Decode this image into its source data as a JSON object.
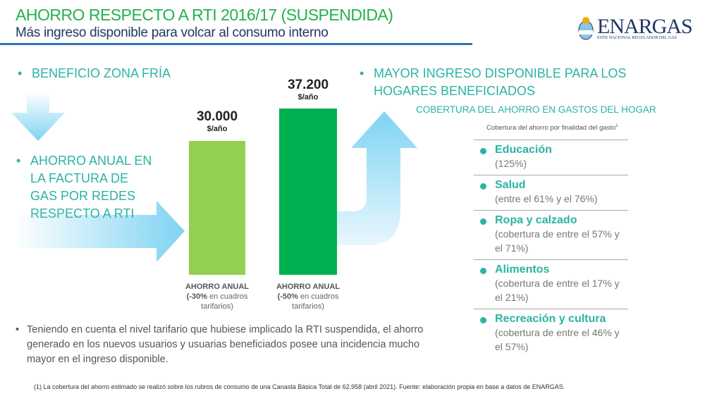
{
  "header": {
    "title": "AHORRO RESPECTO A RTI 2016/17 (SUSPENDIDA)",
    "subtitle": "Más ingreso disponible para volcar al consumo interno",
    "logo_name": "ENARGAS",
    "logo_sub": "ENTE NACIONAL REGULADOR DEL GAS"
  },
  "left": {
    "bullet1": "BENEFICIO ZONA FRÍA",
    "bullet2": "AHORRO ANUAL EN LA FACTURA DE GAS POR REDES RESPECTO A RTI"
  },
  "chart_data": {
    "type": "bar",
    "categories": [
      "AHORRO ANUAL (-30% en cuadros tarifarios)",
      "AHORRO ANUAL (-50% en cuadros tarifarios)"
    ],
    "values": [
      30000,
      37200
    ],
    "value_labels": [
      "30.000",
      "37.200"
    ],
    "unit": "$/año",
    "colors": [
      "#92d050",
      "#00b050"
    ],
    "bars": [
      {
        "label": "AHORRO ANUAL",
        "pct": "(-30%",
        "rest": " en cuadros tarifarios)"
      },
      {
        "label": "AHORRO ANUAL",
        "pct": "(-50%",
        "rest": " en cuadros tarifarios)"
      }
    ]
  },
  "right": {
    "heading": "MAYOR INGRESO DISPONIBLE PARA LOS HOGARES BENEFICIADOS",
    "subheading": "COBERTURA DEL AHORRO EN GASTOS DEL HOGAR",
    "caption": "Cobertura del ahorro por finalidad del gasto",
    "caption_sup": "1",
    "items": [
      {
        "title": "Educación",
        "desc": "(125%)"
      },
      {
        "title": "Salud",
        "desc": "(entre el 61% y el 76%)"
      },
      {
        "title": "Ropa y calzado",
        "desc": "(cobertura de entre el 57% y el 71%)"
      },
      {
        "title": "Alimentos",
        "desc": "(cobertura de entre el 17% y el 21%)"
      },
      {
        "title": "Recreación y cultura",
        "desc": "(cobertura de entre el 46% y el 57%)"
      }
    ]
  },
  "note": "Teniendo en cuenta el nivel tarifario que hubiese implicado la RTI suspendida, el ahorro generado en los nuevos usuarios y usuarias beneficiados posee una incidencia mucho mayor en el ingreso disponible.",
  "footnote": "(1) La cobertura del ahorro estimado se realizó sobre los rubros de consumo de una Canasta Básica Total de 62.958 (abril 2021). Fuente: elaboración propia en base a datos de ENARGAS.",
  "bullet_char": "•"
}
